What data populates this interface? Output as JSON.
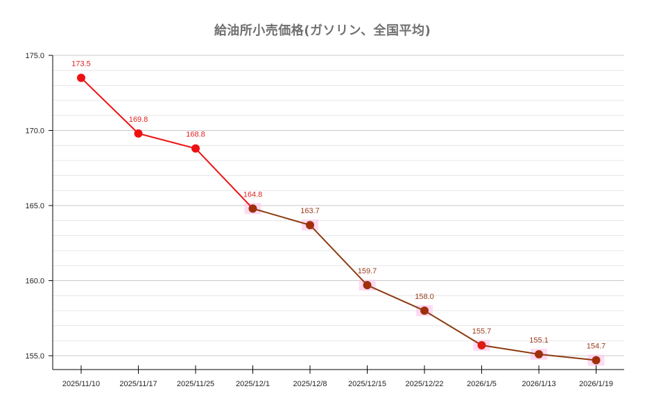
{
  "title": "給油所小売価格(ガソリン、全国平均)",
  "colors": {
    "title": "#707070",
    "segment_early": "#ee1111",
    "segment_late": "#8b3a0f",
    "marker_early": "#ee1111",
    "marker_late": "#a0300c",
    "label_early": "#dd2222",
    "label_late": "#9a3a1a",
    "highlight": "#ffccee",
    "grid_major": "#c8c8c8",
    "grid_minor": "#e6e6e6",
    "axis": "#000000"
  },
  "chart_data": {
    "type": "line",
    "title": "給油所小売価格(ガソリン、全国平均)",
    "xlabel": "",
    "ylabel": "",
    "categories": [
      "2025/11/10",
      "2025/11/17",
      "2025/11/25",
      "2025/12/1",
      "2025/12/8",
      "2025/12/15",
      "2025/12/22",
      "2026/1/5",
      "2026/1/13",
      "2026/1/19"
    ],
    "values": [
      173.5,
      169.8,
      168.8,
      164.8,
      163.7,
      159.7,
      158.0,
      155.7,
      155.1,
      154.7
    ],
    "data_labels": [
      "173.5",
      "169.8",
      "168.8",
      "164.8",
      "163.7",
      "159.7",
      "158.0",
      "155.7",
      "155.1",
      "154.7"
    ],
    "yticks": [
      155.0,
      160.0,
      165.0,
      170.0,
      175.0
    ],
    "ytick_labels": [
      "155.0",
      "160.0",
      "165.0",
      "170.0",
      "175.0"
    ],
    "ylim": [
      154.08,
      175.0
    ],
    "grid": {
      "major_step": 5,
      "minor_step": 1,
      "horizontal": true,
      "vertical": false
    },
    "legend": null
  }
}
